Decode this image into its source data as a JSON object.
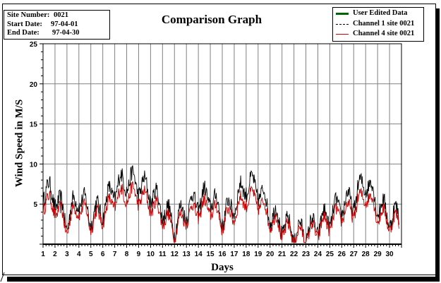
{
  "info": {
    "site_label": "Site Number:",
    "site_value": "0021",
    "start_label": "Start Date:",
    "start_value": "97-04-01",
    "end_label": "End Date:",
    "end_value": "97-04-30"
  },
  "chart_data": {
    "type": "line",
    "title": "Comparison Graph",
    "xlabel": "Days",
    "ylabel": "Wind Speed in M/S",
    "xlim": [
      1,
      31
    ],
    "ylim": [
      0,
      25
    ],
    "x_ticks": [
      1,
      2,
      3,
      4,
      5,
      6,
      7,
      8,
      9,
      10,
      11,
      12,
      13,
      14,
      15,
      16,
      17,
      18,
      19,
      20,
      21,
      22,
      23,
      24,
      25,
      26,
      27,
      28,
      29,
      30
    ],
    "y_ticks": [
      5,
      10,
      15,
      20,
      25
    ],
    "grid": true,
    "legend_position": "top-right",
    "series": [
      {
        "name": "User Edited Data",
        "color": "#006400",
        "style": "solid",
        "values": []
      },
      {
        "name": "Channel 1 site 0021",
        "color": "#000000",
        "style": "dashed",
        "day_means": [
          6.8,
          6.0,
          3.0,
          6.0,
          3.5,
          4.5,
          7.0,
          8.0,
          7.5,
          6.5,
          4.5,
          2.5,
          4.5,
          5.5,
          6.0,
          3.5,
          5.0,
          7.5,
          7.0,
          4.0,
          2.5,
          1.5,
          1.5,
          2.5,
          3.5,
          5.0,
          5.5,
          8.0,
          5.0,
          3.5
        ]
      },
      {
        "name": "Channel 4 site 0021",
        "color": "#cc0000",
        "style": "solid",
        "day_means": [
          5.3,
          4.7,
          2.3,
          4.8,
          2.8,
          3.6,
          5.6,
          6.3,
          6.0,
          5.1,
          3.5,
          1.9,
          3.6,
          4.3,
          4.7,
          2.8,
          3.9,
          5.8,
          5.5,
          3.1,
          1.9,
          1.1,
          1.1,
          1.9,
          2.8,
          3.9,
          4.3,
          6.3,
          3.9,
          2.8
        ]
      }
    ]
  }
}
